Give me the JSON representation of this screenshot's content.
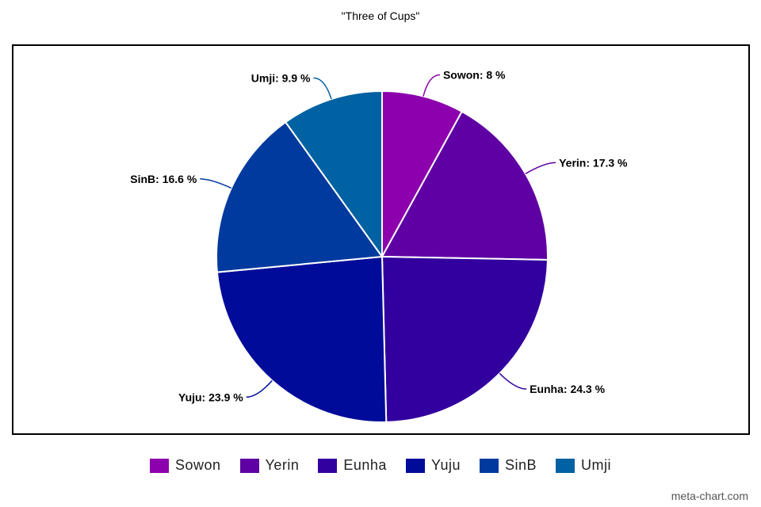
{
  "chart_data": {
    "type": "pie",
    "title": "\"Three of Cups\"",
    "slices": [
      {
        "name": "Sowon",
        "value": 8,
        "label": "Sowon: 8 %",
        "color": "#8c00ad"
      },
      {
        "name": "Yerin",
        "value": 17.3,
        "label": "Yerin: 17.3 %",
        "color": "#5e00a3"
      },
      {
        "name": "Eunha",
        "value": 24.3,
        "label": "Eunha: 24.3 %",
        "color": "#32009e"
      },
      {
        "name": "Yuju",
        "value": 23.9,
        "label": "Yuju: 23.9 %",
        "color": "#000c99"
      },
      {
        "name": "SinB",
        "value": 16.6,
        "label": "SinB: 16.6 %",
        "color": "#003a9e"
      },
      {
        "name": "Umji",
        "value": 9.9,
        "label": "Umji: 9.9 %",
        "color": "#0061a3"
      }
    ],
    "legend_position": "bottom"
  },
  "watermark": "meta-chart.com"
}
